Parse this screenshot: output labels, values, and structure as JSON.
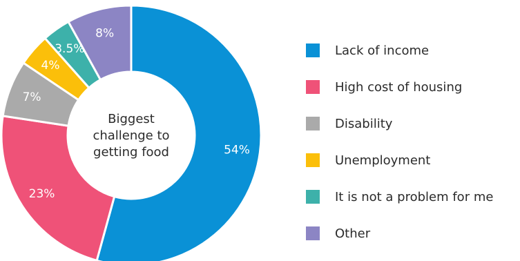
{
  "chart_data": {
    "type": "pie",
    "title": "Biggest challenge to getting food",
    "title_lines": [
      "Biggest",
      "challenge to",
      "getting food"
    ],
    "categories": [
      "Lack of income",
      "High cost of housing",
      "Disability",
      "Unemployment",
      "It is not a problem for me",
      "Other"
    ],
    "values": [
      54,
      23,
      7,
      4,
      3.5,
      8
    ],
    "value_labels": [
      "54%",
      "23%",
      "7%",
      "4%",
      "3.5%",
      "8%"
    ],
    "colors": [
      "#0A91D6",
      "#EF5278",
      "#AAAAAA",
      "#FBBF0A",
      "#3DB1AA",
      "#8C85C4"
    ],
    "legend_position": "right",
    "donut": true
  }
}
